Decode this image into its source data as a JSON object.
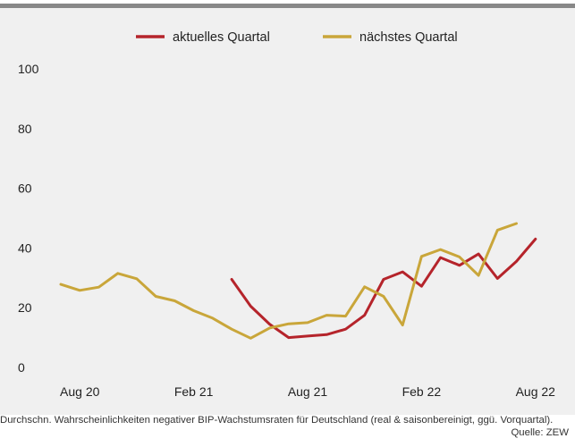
{
  "chart_data": {
    "type": "line",
    "x": [
      "2020-07",
      "2020-08",
      "2020-09",
      "2020-10",
      "2020-11",
      "2020-12",
      "2021-01",
      "2021-02",
      "2021-03",
      "2021-04",
      "2021-05",
      "2021-06",
      "2021-07",
      "2021-08",
      "2021-09",
      "2021-10",
      "2021-11",
      "2021-12",
      "2022-01",
      "2022-02",
      "2022-03",
      "2022-04",
      "2022-05",
      "2022-06",
      "2022-07",
      "2022-08",
      "2022-09"
    ],
    "x_tick_labels": [
      "Aug 20",
      "Feb 21",
      "Aug 21",
      "Feb 22",
      "Aug 22"
    ],
    "x_tick_positions": [
      "2020-08",
      "2021-02",
      "2021-08",
      "2022-02",
      "2022-08"
    ],
    "series": [
      {
        "name": "aktuelles Quartal",
        "color": "#b5242b",
        "values": [
          null,
          null,
          null,
          null,
          null,
          null,
          null,
          null,
          null,
          29.5,
          20.5,
          14.5,
          10.0,
          10.5,
          11.0,
          12.8,
          17.5,
          29.5,
          32.0,
          27.2,
          36.8,
          34.2,
          38.0,
          29.8,
          35.5,
          43.0,
          null
        ]
      },
      {
        "name": "nächstes Quartal",
        "color": "#c9a63a",
        "values": [
          27.8,
          25.8,
          26.9,
          31.5,
          29.7,
          23.8,
          22.3,
          19.0,
          16.5,
          12.8,
          9.8,
          13.2,
          14.6,
          15.0,
          17.5,
          17.2,
          27.0,
          23.8,
          14.2,
          37.2,
          39.5,
          37.0,
          30.8,
          46.0,
          48.2,
          null,
          null
        ]
      }
    ],
    "ylim": [
      0,
      100
    ],
    "y_ticks": [
      0,
      20,
      40,
      60,
      80,
      100
    ],
    "legend_position": "top-center",
    "grid": false
  },
  "caption": {
    "description": "Durchschn. Wahrscheinlichkeiten negativer BIP-Wachstumsraten für Deutschland (real & saisonbereinigt, ggü. Vorquartal).",
    "source": "Quelle: ZEW"
  }
}
